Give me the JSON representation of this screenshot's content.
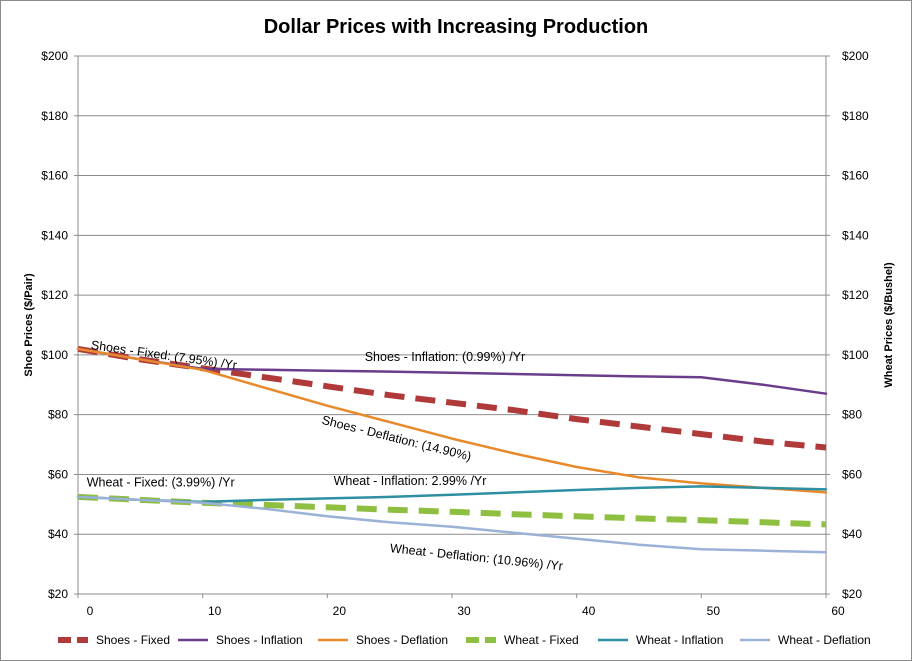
{
  "chart_data": {
    "type": "line",
    "title": "Dollar Prices with Increasing Production",
    "ylabel_left": "Shoe Prices ($/Pair)",
    "ylabel_right": "Wheat Prices ($/Bushel)",
    "xlim": [
      0,
      60
    ],
    "ylim": [
      20,
      200
    ],
    "x_ticks": [
      "0",
      "10",
      "20",
      "30",
      "40",
      "50",
      "60"
    ],
    "y_ticks": [
      "$20",
      "$40",
      "$60",
      "$80",
      "$100",
      "$120",
      "$140",
      "$160",
      "$180",
      "$200"
    ],
    "grid": "horizontal",
    "legend_position": "bottom",
    "x": [
      0,
      5,
      10,
      15,
      20,
      25,
      30,
      35,
      40,
      45,
      50,
      55,
      60
    ],
    "series": [
      {
        "name": "Shoes - Fixed",
        "axis": "left",
        "color": "#b03a3a",
        "dash": true,
        "width": 6,
        "values": [
          102,
          98.5,
          95.5,
          92.5,
          89.5,
          86.5,
          84,
          81.5,
          78.5,
          76,
          73.5,
          71,
          69
        ]
      },
      {
        "name": "Shoes - Inflation",
        "axis": "left",
        "color": "#6a3d8c",
        "dash": false,
        "width": 2.5,
        "values": [
          102,
          98.5,
          95.3,
          95,
          94.7,
          94.4,
          94,
          93.6,
          93.2,
          92.8,
          92.5,
          90,
          87
        ]
      },
      {
        "name": "Shoes - Deflation",
        "axis": "left",
        "color": "#e8892c",
        "dash": false,
        "width": 2.5,
        "values": [
          102,
          98.5,
          95,
          89,
          83,
          77.5,
          72,
          67,
          62.5,
          59,
          57,
          55.5,
          54
        ]
      },
      {
        "name": "Wheat - Fixed",
        "axis": "right",
        "color": "#8fbf40",
        "dash": true,
        "width": 6,
        "values": [
          52.5,
          51.5,
          50.5,
          49.8,
          49,
          48.2,
          47.5,
          46.7,
          46,
          45.3,
          44.7,
          44,
          43.3
        ]
      },
      {
        "name": "Wheat - Inflation",
        "axis": "right",
        "color": "#2e8fa3",
        "dash": false,
        "width": 2.5,
        "values": [
          52.5,
          51.5,
          50.8,
          51.5,
          52,
          52.5,
          53.2,
          54,
          54.8,
          55.5,
          56,
          55.5,
          55
        ]
      },
      {
        "name": "Wheat - Deflation",
        "axis": "right",
        "color": "#9bb1d6",
        "dash": false,
        "width": 2.5,
        "values": [
          52.5,
          51.5,
          50.5,
          48.5,
          46,
          44,
          42.5,
          40.5,
          38.5,
          36.5,
          35,
          34.5,
          34
        ]
      }
    ],
    "annotations": [
      {
        "text": "Shoes - Fixed: (7.95%) /Yr",
        "x": 1,
        "y": 102,
        "rotate": 8
      },
      {
        "text": "Shoes - Inflation: (0.99%) /Yr",
        "x": 23,
        "y": 98,
        "rotate": 0
      },
      {
        "text": "Shoes - Deflation: (14.90%)",
        "x": 19.5,
        "y": 77,
        "rotate": 14
      },
      {
        "text": "Wheat - Fixed: (3.99%) /Yr",
        "x": 0.7,
        "y": 56,
        "rotate": 0
      },
      {
        "text": "Wheat - Inflation: 2.99% /Yr",
        "x": 20.5,
        "y": 56.5,
        "rotate": 0
      },
      {
        "text": "Wheat - Deflation: (10.96%) /Yr",
        "x": 25,
        "y": 34,
        "rotate": 6
      }
    ]
  }
}
